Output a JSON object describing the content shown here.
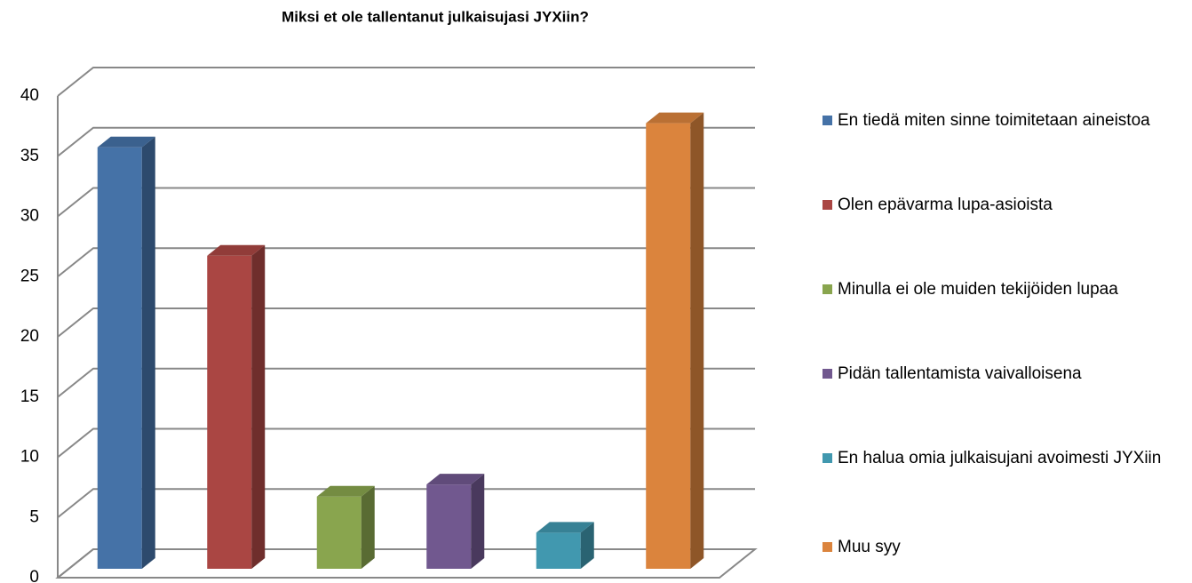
{
  "chart_data": {
    "type": "bar3d",
    "title": "Miksi et ole tallentanut julkaisujasi JYXiin?",
    "ylim": [
      0,
      40
    ],
    "yticks": [
      0,
      5,
      10,
      15,
      20,
      25,
      30,
      35,
      40
    ],
    "grid": true,
    "series": [
      {
        "name": "En tiedä miten sinne toimitetaan aineistoa",
        "color": "#4572a7",
        "values": [
          35
        ]
      },
      {
        "name": "Olen epävarma lupa-asioista",
        "color": "#aa4643",
        "values": [
          26
        ]
      },
      {
        "name": "Minulla ei ole muiden tekijöiden lupaa",
        "color": "#89a54e",
        "values": [
          6
        ]
      },
      {
        "name": "Pidän tallentamista vaivalloisena",
        "color": "#71588f",
        "values": [
          7
        ]
      },
      {
        "name": "En halua omia julkaisujani avoimesti JYXiin",
        "color": "#4198af",
        "values": [
          3
        ]
      },
      {
        "name": "Muu syy",
        "color": "#db843d",
        "values": [
          37
        ]
      }
    ]
  }
}
